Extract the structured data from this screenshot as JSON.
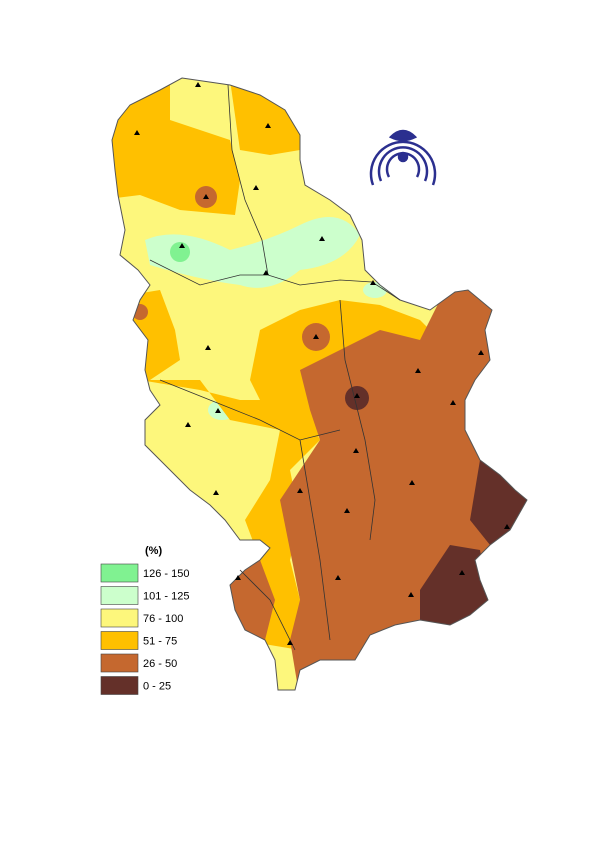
{
  "legend": {
    "title": "(%)",
    "items": [
      {
        "label": "126 - 150",
        "color": "#80f291"
      },
      {
        "label": "101 - 125",
        "color": "#ccffcc"
      },
      {
        "label": "76 - 100",
        "color": "#fdf77c"
      },
      {
        "label": "51 - 75",
        "color": "#ffc000"
      },
      {
        "label": "26 - 50",
        "color": "#c5682f"
      },
      {
        "label": "0 - 25",
        "color": "#643029"
      }
    ]
  }
}
